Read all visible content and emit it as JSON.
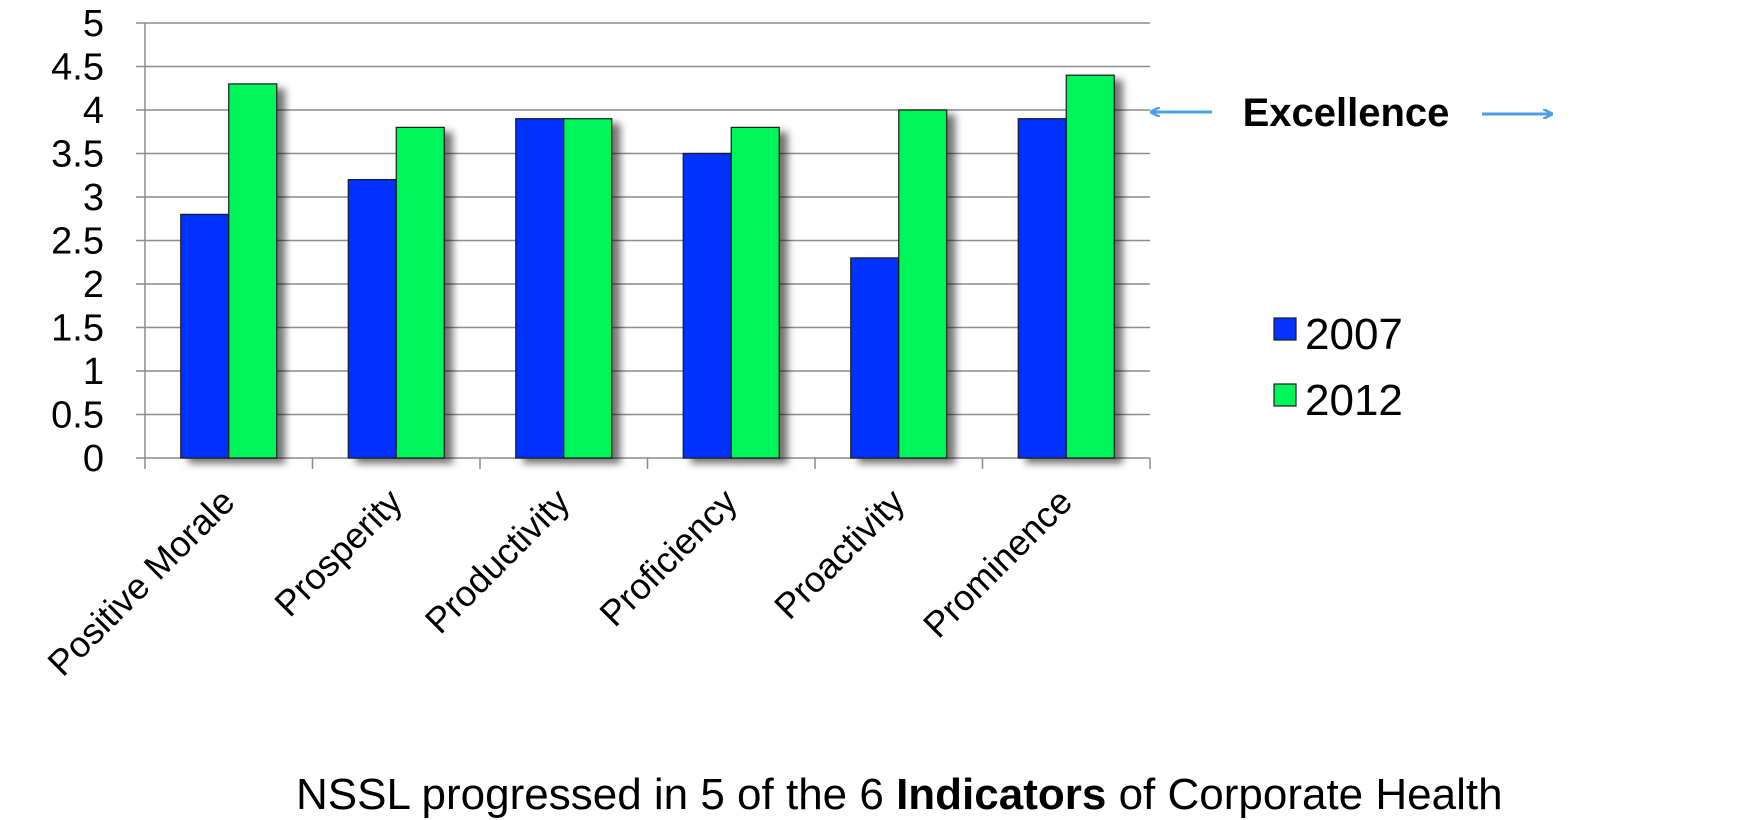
{
  "chart_data": {
    "type": "bar",
    "categories": [
      "Positive Morale",
      "Prosperity",
      "Productivity",
      "Proficiency",
      "Proactivity",
      "Prominence"
    ],
    "series": [
      {
        "name": "2007",
        "values": [
          2.8,
          3.2,
          3.9,
          3.5,
          2.3,
          3.9
        ],
        "color": "#0433FF"
      },
      {
        "name": "2012",
        "values": [
          4.3,
          3.8,
          3.9,
          3.8,
          4.0,
          4.4
        ],
        "color": "#00F55A"
      }
    ],
    "yticks": [
      "0",
      "0.5",
      "1",
      "1.5",
      "2",
      "2.5",
      "3",
      "3.5",
      "4",
      "4.5",
      "5"
    ],
    "ylim": [
      0,
      5
    ],
    "grid": true,
    "legend": "right",
    "annotation": {
      "text": "Excellence",
      "value": 4,
      "arrow_color": "#4A9EEA"
    }
  },
  "footnote": {
    "prefix": "NSSL progressed in 5 of the 6 ",
    "bold": "Indicators",
    "suffix": " of Corporate Health"
  }
}
